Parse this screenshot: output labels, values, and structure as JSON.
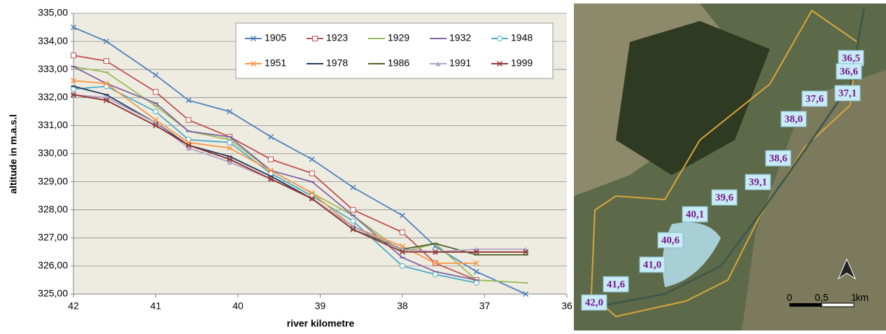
{
  "chart_data": {
    "type": "line",
    "ylabel": "altitude in m.a.s.l",
    "xlabel": "river kilometre",
    "x": [
      42,
      41.6,
      41.0,
      40.6,
      40.1,
      39.6,
      39.1,
      38.6,
      38.0,
      37.6,
      37.1,
      36.5
    ],
    "xlim": [
      42,
      36
    ],
    "xticks": [
      42,
      41,
      40,
      39,
      38,
      37,
      36
    ],
    "ylim": [
      325,
      335
    ],
    "yticks": [
      {
        "value": 325,
        "label": "325,00"
      },
      {
        "value": 326,
        "label": "326,00"
      },
      {
        "value": 327,
        "label": "327,00"
      },
      {
        "value": 328,
        "label": "328,00"
      },
      {
        "value": 329,
        "label": "329,00"
      },
      {
        "value": 330,
        "label": "330,00"
      },
      {
        "value": 331,
        "label": "331,00"
      },
      {
        "value": 332,
        "label": "332,00"
      },
      {
        "value": 333,
        "label": "333,00"
      },
      {
        "value": 334,
        "label": "334,00"
      },
      {
        "value": 335,
        "label": "335,00"
      }
    ],
    "grid": true,
    "legend": "top-right",
    "series": [
      {
        "name": "1905",
        "color": "#4f81bd",
        "marker": "x",
        "values": [
          334.5,
          334.0,
          332.8,
          331.9,
          331.5,
          330.6,
          329.8,
          328.8,
          327.8,
          326.7,
          325.8,
          325.0
        ]
      },
      {
        "name": "1923",
        "color": "#c0504d",
        "marker": "square",
        "values": [
          333.5,
          333.3,
          332.2,
          331.2,
          330.6,
          329.8,
          329.3,
          328.0,
          327.2,
          326.1,
          325.5,
          null
        ]
      },
      {
        "name": "1929",
        "color": "#9bbb59",
        "marker": "dash",
        "values": [
          333.1,
          332.9,
          331.7,
          330.8,
          330.5,
          329.4,
          328.6,
          327.8,
          326.5,
          326.8,
          325.5,
          325.4
        ]
      },
      {
        "name": "1932",
        "color": "#8064a2",
        "marker": "dash",
        "values": [
          333.1,
          332.5,
          331.8,
          330.8,
          330.6,
          329.4,
          329.0,
          327.8,
          326.3,
          325.8,
          325.5,
          null
        ]
      },
      {
        "name": "1948",
        "color": "#4bacc6",
        "marker": "circle",
        "values": [
          332.3,
          332.4,
          331.5,
          330.5,
          330.4,
          329.3,
          328.5,
          327.6,
          326.0,
          325.7,
          325.4,
          null
        ]
      },
      {
        "name": "1951",
        "color": "#f79646",
        "marker": "x",
        "values": [
          332.6,
          332.5,
          331.2,
          330.4,
          330.2,
          329.4,
          328.6,
          327.4,
          326.7,
          326.1,
          326.1,
          null
        ]
      },
      {
        "name": "1978",
        "color": "#1f3864",
        "marker": "dash",
        "values": [
          332.4,
          332.1,
          331.1,
          330.3,
          329.9,
          329.2,
          328.4,
          327.4,
          326.6,
          326.5,
          326.5,
          326.5
        ]
      },
      {
        "name": "1986",
        "color": "#4f6228",
        "marker": "dash",
        "values": [
          332.1,
          331.9,
          331.0,
          330.3,
          329.8,
          329.1,
          328.4,
          327.3,
          326.6,
          326.8,
          326.4,
          326.4
        ]
      },
      {
        "name": "1991",
        "color": "#b3a2c7",
        "marker": "triangle",
        "values": [
          332.1,
          332.0,
          331.1,
          330.2,
          329.7,
          329.1,
          328.4,
          327.4,
          326.6,
          326.5,
          326.6,
          326.6
        ]
      },
      {
        "name": "1999",
        "color": "#953735",
        "marker": "x",
        "values": [
          332.1,
          331.9,
          331.0,
          330.3,
          329.8,
          329.1,
          328.4,
          327.3,
          326.5,
          326.5,
          326.5,
          326.5
        ]
      }
    ]
  },
  "map": {
    "labels": [
      "36,5",
      "36,6",
      "37,1",
      "37,6",
      "38,0",
      "38,6",
      "39,1",
      "39,6",
      "40,1",
      "40,6",
      "41,0",
      "41,6",
      "42,0"
    ],
    "scale": [
      "0",
      "0,5",
      "1",
      "km"
    ]
  }
}
